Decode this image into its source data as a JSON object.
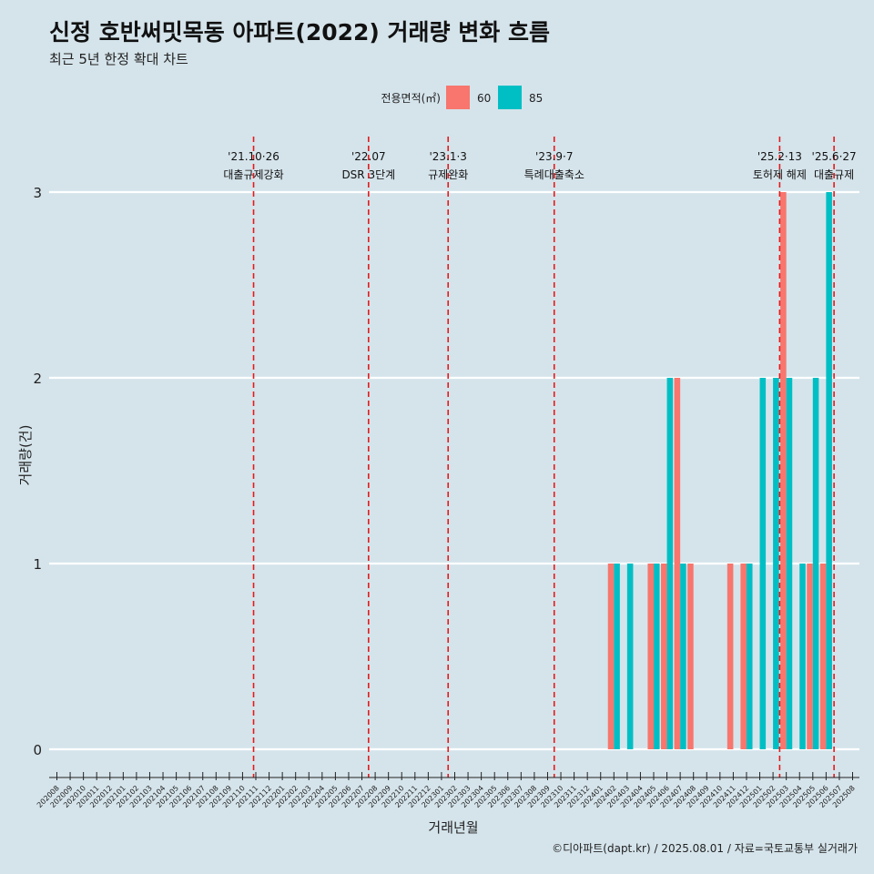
{
  "chart_data": {
    "type": "bar",
    "title": "신정 호반써밋목동 아파트(2022) 거래량 변화 흐름",
    "subtitle": "최근 5년 한정 확대 차트",
    "xlabel": "거래년월",
    "ylabel": "거래량(건)",
    "caption": "©디아파트(dapt.kr) / 2025.08.01 / 자료=국토교통부 실거래가",
    "ylim": [
      -0.15,
      3.3
    ],
    "y_ticks": [
      0,
      1,
      2,
      3
    ],
    "grid": true,
    "legend": {
      "title": "전용면적(㎡)",
      "position": "top",
      "entries": [
        {
          "label": "60",
          "color": "#f8766d"
        },
        {
          "label": "85",
          "color": "#00bfc4"
        }
      ]
    },
    "categories": [
      "202008",
      "202009",
      "202010",
      "202011",
      "202012",
      "202101",
      "202102",
      "202103",
      "202104",
      "202105",
      "202106",
      "202107",
      "202108",
      "202109",
      "202110",
      "202111",
      "202112",
      "202201",
      "202202",
      "202203",
      "202204",
      "202205",
      "202206",
      "202207",
      "202208",
      "202209",
      "202210",
      "202211",
      "202212",
      "202301",
      "202302",
      "202303",
      "202304",
      "202305",
      "202306",
      "202307",
      "202308",
      "202309",
      "202310",
      "202311",
      "202312",
      "202401",
      "202402",
      "202403",
      "202404",
      "202405",
      "202406",
      "202407",
      "202408",
      "202409",
      "202410",
      "202411",
      "202412",
      "202501",
      "202502",
      "202503",
      "202504",
      "202505",
      "202506",
      "202507",
      "202508"
    ],
    "series": [
      {
        "name": "60",
        "color": "#f8766d",
        "values": [
          0,
          0,
          0,
          0,
          0,
          0,
          0,
          0,
          0,
          0,
          0,
          0,
          0,
          0,
          0,
          0,
          0,
          0,
          0,
          0,
          0,
          0,
          0,
          0,
          0,
          0,
          0,
          0,
          0,
          0,
          0,
          0,
          0,
          0,
          0,
          0,
          0,
          0,
          0,
          0,
          0,
          0,
          1,
          0,
          0,
          1,
          1,
          2,
          1,
          0,
          0,
          1,
          1,
          0,
          0,
          3,
          0,
          1,
          1,
          0,
          0
        ]
      },
      {
        "name": "85",
        "color": "#00bfc4",
        "values": [
          0,
          0,
          0,
          0,
          0,
          0,
          0,
          0,
          0,
          0,
          0,
          0,
          0,
          0,
          0,
          0,
          0,
          0,
          0,
          0,
          0,
          0,
          0,
          0,
          0,
          0,
          0,
          0,
          0,
          0,
          0,
          0,
          0,
          0,
          0,
          0,
          0,
          0,
          0,
          0,
          0,
          0,
          1,
          1,
          0,
          1,
          2,
          1,
          0,
          0,
          0,
          0,
          1,
          2,
          2,
          2,
          1,
          2,
          3,
          0,
          0
        ]
      }
    ],
    "events": [
      {
        "date": "'21.10·26",
        "label": "대출규제강화",
        "x_index": 14.83,
        "color": "#e41a1c"
      },
      {
        "date": "'22.07",
        "label": "DSR 3단계",
        "x_index": 23.5,
        "color": "#e41a1c"
      },
      {
        "date": "'23.1·3",
        "label": "규제완화",
        "x_index": 29.5,
        "color": "#e41a1c"
      },
      {
        "date": "'23.9·7",
        "label": "특례대출축소",
        "x_index": 37.5,
        "color": "#e41a1c"
      },
      {
        "date": "'25.2·13",
        "label": "토허제 해제",
        "x_index": 54.5,
        "color": "#e41a1c"
      },
      {
        "date": "'25.6·27",
        "label": "대출규제",
        "x_index": 58.6,
        "color": "#e41a1c"
      }
    ]
  }
}
